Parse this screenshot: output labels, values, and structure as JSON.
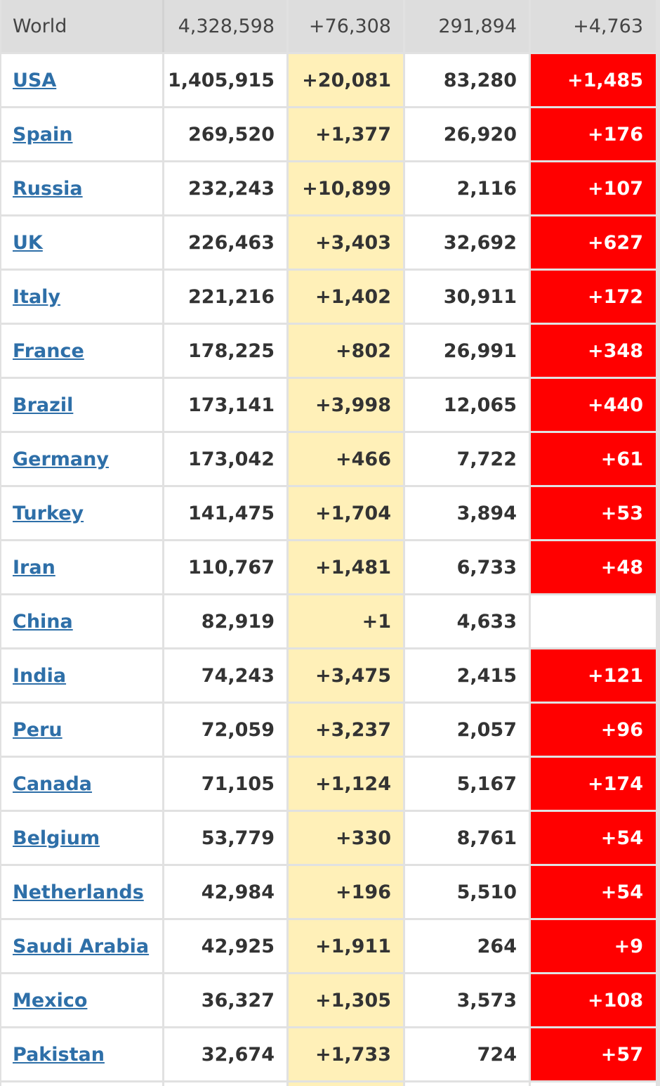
{
  "world": {
    "name": "World",
    "total_cases": "4,328,598",
    "new_cases": "+76,308",
    "total_deaths": "291,894",
    "new_deaths": "+4,763"
  },
  "rows": [
    {
      "country": "USA",
      "total_cases": "1,405,915",
      "new_cases": "+20,081",
      "total_deaths": "83,280",
      "new_deaths": "+1,485"
    },
    {
      "country": "Spain",
      "total_cases": "269,520",
      "new_cases": "+1,377",
      "total_deaths": "26,920",
      "new_deaths": "+176"
    },
    {
      "country": "Russia",
      "total_cases": "232,243",
      "new_cases": "+10,899",
      "total_deaths": "2,116",
      "new_deaths": "+107"
    },
    {
      "country": "UK",
      "total_cases": "226,463",
      "new_cases": "+3,403",
      "total_deaths": "32,692",
      "new_deaths": "+627"
    },
    {
      "country": "Italy",
      "total_cases": "221,216",
      "new_cases": "+1,402",
      "total_deaths": "30,911",
      "new_deaths": "+172"
    },
    {
      "country": "France",
      "total_cases": "178,225",
      "new_cases": "+802",
      "total_deaths": "26,991",
      "new_deaths": "+348"
    },
    {
      "country": "Brazil",
      "total_cases": "173,141",
      "new_cases": "+3,998",
      "total_deaths": "12,065",
      "new_deaths": "+440"
    },
    {
      "country": "Germany",
      "total_cases": "173,042",
      "new_cases": "+466",
      "total_deaths": "7,722",
      "new_deaths": "+61"
    },
    {
      "country": "Turkey",
      "total_cases": "141,475",
      "new_cases": "+1,704",
      "total_deaths": "3,894",
      "new_deaths": "+53"
    },
    {
      "country": "Iran",
      "total_cases": "110,767",
      "new_cases": "+1,481",
      "total_deaths": "6,733",
      "new_deaths": "+48"
    },
    {
      "country": "China",
      "total_cases": "82,919",
      "new_cases": "+1",
      "total_deaths": "4,633",
      "new_deaths": ""
    },
    {
      "country": "India",
      "total_cases": "74,243",
      "new_cases": "+3,475",
      "total_deaths": "2,415",
      "new_deaths": "+121"
    },
    {
      "country": "Peru",
      "total_cases": "72,059",
      "new_cases": "+3,237",
      "total_deaths": "2,057",
      "new_deaths": "+96"
    },
    {
      "country": "Canada",
      "total_cases": "71,105",
      "new_cases": "+1,124",
      "total_deaths": "5,167",
      "new_deaths": "+174"
    },
    {
      "country": "Belgium",
      "total_cases": "53,779",
      "new_cases": "+330",
      "total_deaths": "8,761",
      "new_deaths": "+54"
    },
    {
      "country": "Netherlands",
      "total_cases": "42,984",
      "new_cases": "+196",
      "total_deaths": "5,510",
      "new_deaths": "+54"
    },
    {
      "country": "Saudi Arabia",
      "total_cases": "42,925",
      "new_cases": "+1,911",
      "total_deaths": "264",
      "new_deaths": "+9"
    },
    {
      "country": "Mexico",
      "total_cases": "36,327",
      "new_cases": "+1,305",
      "total_deaths": "3,573",
      "new_deaths": "+108"
    },
    {
      "country": "Pakistan",
      "total_cases": "32,674",
      "new_cases": "+1,733",
      "total_deaths": "724",
      "new_deaths": "+57"
    },
    {
      "country": "",
      "total_cases": "",
      "new_cases": "",
      "total_deaths": "",
      "new_deaths": ""
    }
  ],
  "colors": {
    "link": "#2e6fa8",
    "new_cases_bg": "#fff0b8",
    "new_deaths_bg": "#ff0000",
    "world_row_bg": "#dddddd",
    "grid": "#e1e1e1"
  }
}
